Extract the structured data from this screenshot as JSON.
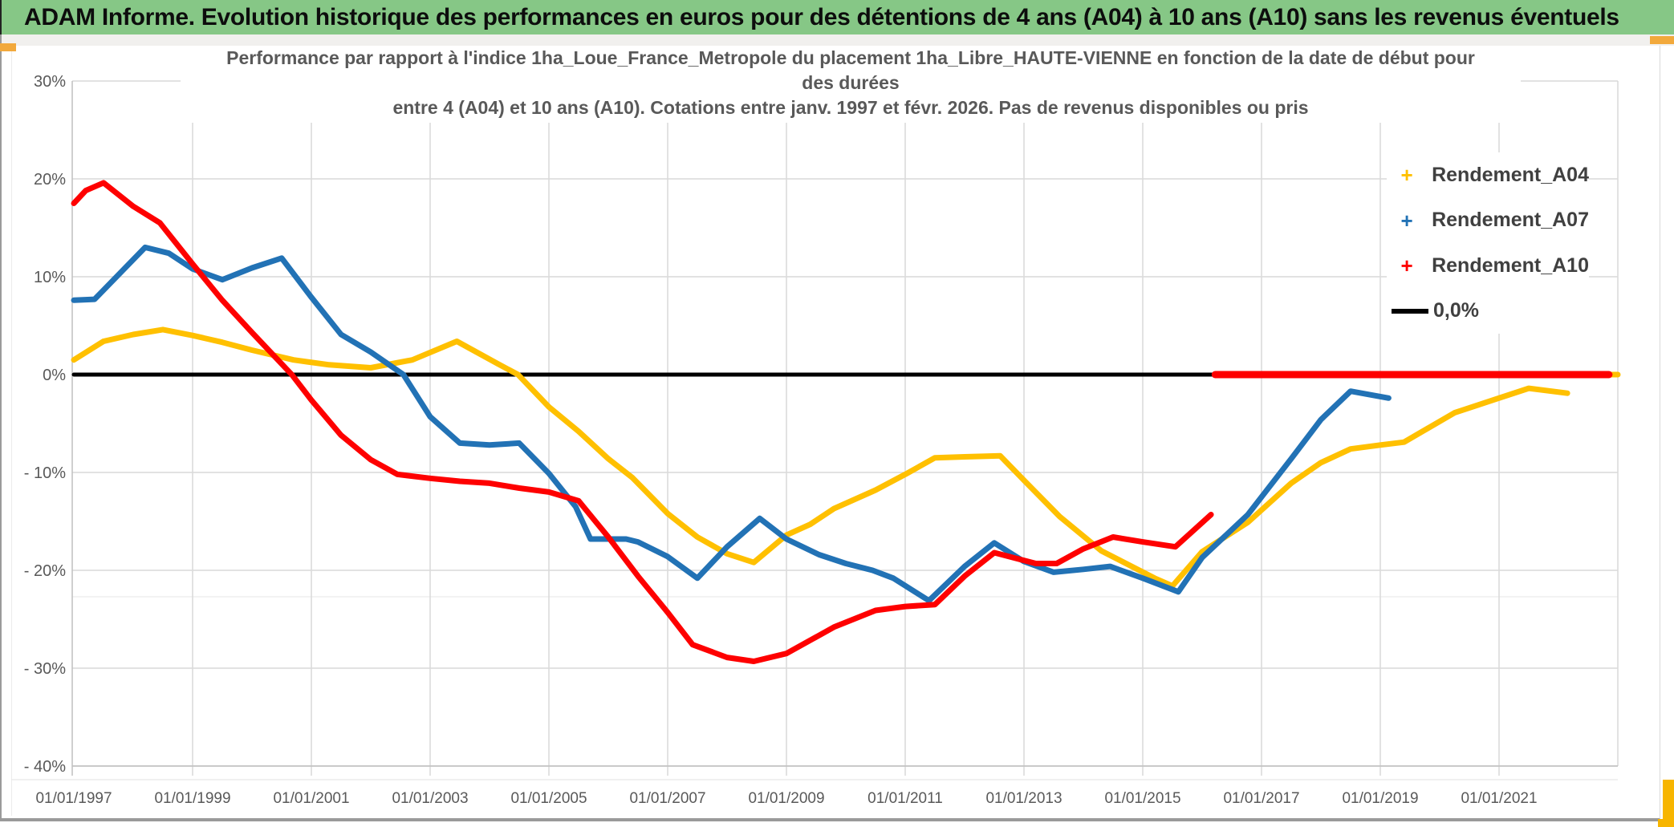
{
  "banner": {
    "title": "ADAM Informe. Evolution historique des performances en euros pour des détentions de 4 ans (A04) à 10 ans (A10) sans les revenus éventuels"
  },
  "chart_title": {
    "line1": "Performance par rapport à l'indice 1ha_Loue_France_Metropole  du placement 1ha_Libre_HAUTE-VIENNE en fonction de la date de début pour",
    "line2": "des durées",
    "line3": "entre 4 (A04) et 10 ans (A10). Cotations entre janv. 1997 et févr. 2026. Pas de revenus disponibles ou pris"
  },
  "legend": {
    "items": [
      {
        "label": "Rendement_A04",
        "marker": "+",
        "color": "#FFC000"
      },
      {
        "label": "Rendement_A07",
        "marker": "+",
        "color": "#2272B5"
      },
      {
        "label": "Rendement_A10",
        "marker": "+",
        "color": "#FE0000"
      },
      {
        "label": "0,0%",
        "marker": "line",
        "color": "#000000"
      }
    ]
  },
  "chart_data": {
    "type": "line",
    "title": "Performance par rapport à l'indice 1ha_Loue_France_Metropole du placement 1ha_Libre_HAUTE-VIENNE en fonction de la date de début pour des durées entre 4 (A04) et 10 ans (A10). Cotations entre janv. 1997 et févr. 2026. Pas de revenus disponibles ou pris",
    "x_axis": {
      "range_years": [
        1997.0,
        2023.05
      ],
      "tick_label_years": [
        1997,
        1999,
        2001,
        2003,
        2005,
        2007,
        2009,
        2011,
        2013,
        2015,
        2017,
        2019,
        2021
      ],
      "tick_labels": [
        "01/01/1997",
        "01/01/1999",
        "01/01/2001",
        "01/01/2003",
        "01/01/2005",
        "01/01/2007",
        "01/01/2009",
        "01/01/2011",
        "01/01/2013",
        "01/01/2015",
        "01/01/2017",
        "01/01/2019",
        "01/01/2021"
      ]
    },
    "y_axis": {
      "unit": "%",
      "range": [
        -40,
        30
      ],
      "ticks": [
        30,
        20,
        10,
        0,
        -10,
        -20,
        -30,
        -40
      ],
      "tick_labels": [
        "30%",
        "20%",
        "10%",
        "0%",
        "- 10%",
        "- 20%",
        "- 30%",
        "- 40%"
      ],
      "extra_faint_line_pct": -22.7
    },
    "grid": true,
    "legend_position": "right-inside",
    "series": [
      {
        "name": "0,0%",
        "color": "#000000",
        "width": 5,
        "points": [
          [
            1997.0,
            0
          ],
          [
            2023.0,
            0
          ]
        ]
      },
      {
        "name": "Rendement_A04",
        "color": "#FFC000",
        "width": 7,
        "points": [
          [
            1997.0,
            1.5
          ],
          [
            1997.5,
            3.4
          ],
          [
            1998.0,
            4.1
          ],
          [
            1998.5,
            4.6
          ],
          [
            1999.0,
            4.0
          ],
          [
            1999.5,
            3.3
          ],
          [
            2000.0,
            2.5
          ],
          [
            2000.7,
            1.5
          ],
          [
            2001.3,
            1.0
          ],
          [
            2002.0,
            0.7
          ],
          [
            2002.7,
            1.5
          ],
          [
            2003.45,
            3.4
          ],
          [
            2004.14,
            1.1
          ],
          [
            2004.48,
            0.0
          ],
          [
            2005.0,
            -3.3
          ],
          [
            2005.5,
            -5.8
          ],
          [
            2006.0,
            -8.6
          ],
          [
            2006.4,
            -10.5
          ],
          [
            2007.0,
            -14.2
          ],
          [
            2007.5,
            -16.6
          ],
          [
            2008.0,
            -18.3
          ],
          [
            2008.45,
            -19.2
          ],
          [
            2009.0,
            -16.4
          ],
          [
            2009.4,
            -15.3
          ],
          [
            2009.8,
            -13.7
          ],
          [
            2010.5,
            -11.8
          ],
          [
            2011.0,
            -10.2
          ],
          [
            2011.5,
            -8.5
          ],
          [
            2012.0,
            -8.4
          ],
          [
            2012.6,
            -8.3
          ],
          [
            2013.0,
            -10.8
          ],
          [
            2013.6,
            -14.5
          ],
          [
            2014.3,
            -18.0
          ],
          [
            2015.2,
            -20.8
          ],
          [
            2015.5,
            -21.6
          ],
          [
            2016.0,
            -18.1
          ],
          [
            2016.77,
            -15.1
          ],
          [
            2017.5,
            -11.1
          ],
          [
            2018.0,
            -9.0
          ],
          [
            2018.5,
            -7.6
          ],
          [
            2019.0,
            -7.2
          ],
          [
            2019.4,
            -6.9
          ],
          [
            2020.25,
            -3.9
          ],
          [
            2020.9,
            -2.6
          ],
          [
            2021.5,
            -1.4
          ],
          [
            2022.15,
            -1.9
          ]
        ]
      },
      {
        "name": "Rendement_A04 zero-fill tail",
        "color": "#FFC000",
        "width": 7,
        "points": [
          [
            2022.25,
            0
          ],
          [
            2023.0,
            0
          ]
        ]
      },
      {
        "name": "Rendement_A07",
        "color": "#2272B5",
        "width": 7,
        "points": [
          [
            1997.0,
            7.6
          ],
          [
            1997.35,
            7.7
          ],
          [
            1998.2,
            13.0
          ],
          [
            1998.6,
            12.4
          ],
          [
            1999.0,
            10.8
          ],
          [
            1999.5,
            9.7
          ],
          [
            2000.0,
            10.9
          ],
          [
            2000.5,
            11.9
          ],
          [
            2001.0,
            7.9
          ],
          [
            2001.5,
            4.1
          ],
          [
            2002.0,
            2.3
          ],
          [
            2002.55,
            0.0
          ],
          [
            2003.0,
            -4.3
          ],
          [
            2003.5,
            -7.0
          ],
          [
            2004.0,
            -7.2
          ],
          [
            2004.5,
            -7.0
          ],
          [
            2005.0,
            -10.1
          ],
          [
            2005.45,
            -13.5
          ],
          [
            2005.7,
            -16.8
          ],
          [
            2006.3,
            -16.8
          ],
          [
            2006.5,
            -17.1
          ],
          [
            2007.0,
            -18.6
          ],
          [
            2007.5,
            -20.8
          ],
          [
            2008.0,
            -17.6
          ],
          [
            2008.55,
            -14.7
          ],
          [
            2009.0,
            -16.8
          ],
          [
            2009.55,
            -18.4
          ],
          [
            2010.0,
            -19.3
          ],
          [
            2010.45,
            -20.0
          ],
          [
            2010.8,
            -20.8
          ],
          [
            2011.4,
            -23.1
          ],
          [
            2012.0,
            -19.6
          ],
          [
            2012.5,
            -17.2
          ],
          [
            2013.0,
            -19.1
          ],
          [
            2013.5,
            -20.2
          ],
          [
            2014.0,
            -19.9
          ],
          [
            2014.45,
            -19.6
          ],
          [
            2015.0,
            -20.8
          ],
          [
            2015.6,
            -22.2
          ],
          [
            2016.0,
            -18.7
          ],
          [
            2016.77,
            -14.3
          ],
          [
            2017.5,
            -8.6
          ],
          [
            2018.0,
            -4.6
          ],
          [
            2018.5,
            -1.7
          ],
          [
            2019.14,
            -2.4
          ]
        ]
      },
      {
        "name": "Rendement_A10",
        "color": "#FE0000",
        "width": 7,
        "points": [
          [
            1997.0,
            17.5
          ],
          [
            1997.2,
            18.8
          ],
          [
            1997.5,
            19.6
          ],
          [
            1998.0,
            17.2
          ],
          [
            1998.45,
            15.5
          ],
          [
            1999.0,
            11.3
          ],
          [
            1999.5,
            7.6
          ],
          [
            2000.0,
            4.3
          ],
          [
            2000.67,
            0.0
          ],
          [
            2001.0,
            -2.6
          ],
          [
            2001.5,
            -6.2
          ],
          [
            2002.0,
            -8.7
          ],
          [
            2002.45,
            -10.2
          ],
          [
            2003.0,
            -10.6
          ],
          [
            2003.5,
            -10.9
          ],
          [
            2004.0,
            -11.1
          ],
          [
            2004.5,
            -11.6
          ],
          [
            2005.0,
            -12.0
          ],
          [
            2005.5,
            -12.9
          ],
          [
            2006.0,
            -16.6
          ],
          [
            2006.5,
            -20.6
          ],
          [
            2007.0,
            -24.3
          ],
          [
            2007.42,
            -27.6
          ],
          [
            2008.0,
            -28.9
          ],
          [
            2008.45,
            -29.3
          ],
          [
            2009.0,
            -28.5
          ],
          [
            2009.8,
            -25.8
          ],
          [
            2010.5,
            -24.1
          ],
          [
            2011.0,
            -23.7
          ],
          [
            2011.5,
            -23.5
          ],
          [
            2012.0,
            -20.6
          ],
          [
            2012.5,
            -18.2
          ],
          [
            2013.2,
            -19.3
          ],
          [
            2013.55,
            -19.3
          ],
          [
            2014.0,
            -17.8
          ],
          [
            2014.5,
            -16.6
          ],
          [
            2015.0,
            -17.1
          ],
          [
            2015.55,
            -17.6
          ],
          [
            2016.15,
            -14.3
          ]
        ]
      },
      {
        "name": "Rendement_A10 zero-fill",
        "color": "#FE0000",
        "width": 9,
        "points": [
          [
            2016.22,
            0
          ],
          [
            2022.85,
            0
          ]
        ]
      }
    ]
  }
}
